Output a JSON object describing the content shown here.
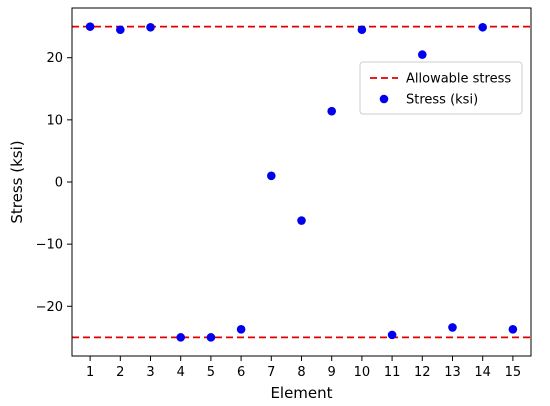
{
  "chart_data": {
    "type": "scatter",
    "title": "",
    "xlabel": "Element",
    "ylabel": "Stress (ksi)",
    "xlim": [
      0.4,
      15.6
    ],
    "ylim": [
      -28,
      28
    ],
    "xticks": [
      1,
      2,
      3,
      4,
      5,
      6,
      7,
      8,
      9,
      10,
      11,
      12,
      13,
      14,
      15
    ],
    "yticks": [
      -20,
      -10,
      0,
      10,
      20
    ],
    "x_tick_labels": [
      "1",
      "2",
      "3",
      "4",
      "5",
      "6",
      "7",
      "8",
      "9",
      "10",
      "11",
      "12",
      "13",
      "14",
      "15"
    ],
    "y_tick_labels": [
      "−20",
      "−10",
      "0",
      "10",
      "20"
    ],
    "grid": false,
    "legend": {
      "position": "upper-right"
    },
    "series": [
      {
        "name": "Stress (ksi)",
        "kind": "scatter",
        "color": "#0000ee",
        "x": [
          1,
          2,
          3,
          4,
          5,
          6,
          7,
          8,
          9,
          10,
          11,
          12,
          13,
          14,
          15
        ],
        "y": [
          25,
          24.5,
          24.9,
          -25,
          -25,
          -23.7,
          1.0,
          -6.2,
          11.4,
          24.5,
          -24.6,
          20.5,
          -23.4,
          24.9,
          -23.7
        ]
      }
    ],
    "reference_lines": [
      {
        "name": "Allowable stress",
        "y": 25,
        "style": "dashed",
        "color": "#e00000",
        "in_legend": true
      },
      {
        "name": "",
        "y": -25,
        "style": "dashed",
        "color": "#e00000",
        "in_legend": false
      }
    ]
  }
}
